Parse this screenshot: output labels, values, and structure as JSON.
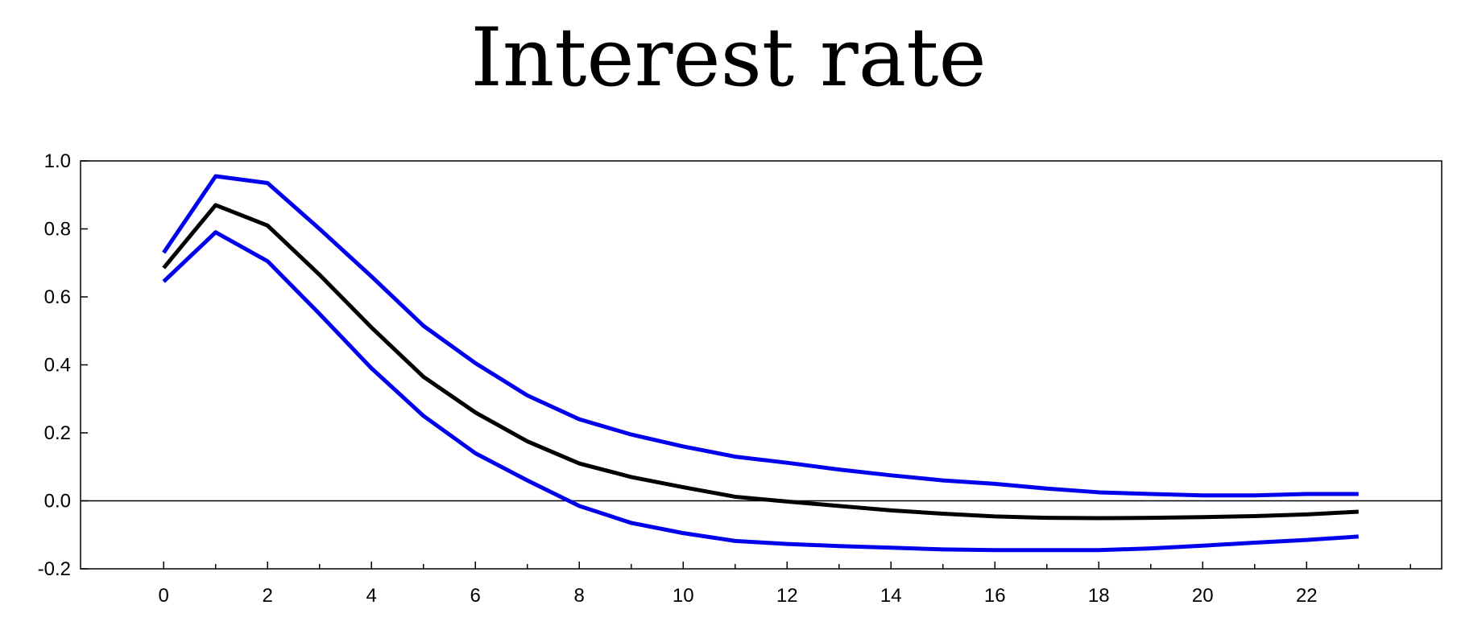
{
  "chart_data": {
    "type": "line",
    "title": "Interest rate",
    "xlabel": "",
    "ylabel": "",
    "xlim": [
      -1.6,
      24.6
    ],
    "ylim": [
      -0.2,
      1.0
    ],
    "x_ticks": [
      0,
      2,
      4,
      6,
      8,
      10,
      12,
      14,
      16,
      18,
      20,
      22
    ],
    "y_ticks": [
      "1.0",
      "0.8",
      "0.6",
      "0.4",
      "0.2",
      "0.0",
      "-0.2"
    ],
    "y_tick_values": [
      1.0,
      0.8,
      0.6,
      0.4,
      0.2,
      0.0,
      -0.2
    ],
    "zero_line": true,
    "grid": false,
    "legend": "none",
    "x": [
      0,
      1,
      2,
      3,
      4,
      5,
      6,
      7,
      8,
      9,
      10,
      11,
      12,
      13,
      14,
      15,
      16,
      17,
      18,
      19,
      20,
      21,
      22,
      23
    ],
    "series": [
      {
        "color": "#0000ee",
        "values": [
          0.73,
          0.955,
          0.935,
          0.8,
          0.66,
          0.515,
          0.405,
          0.31,
          0.24,
          0.195,
          0.16,
          0.13,
          0.112,
          0.092,
          0.075,
          0.06,
          0.05,
          0.036,
          0.025,
          0.02,
          0.016,
          0.016,
          0.02,
          0.02
        ]
      },
      {
        "color": "#000000",
        "values": [
          0.685,
          0.87,
          0.81,
          0.665,
          0.51,
          0.365,
          0.26,
          0.175,
          0.11,
          0.07,
          0.04,
          0.012,
          -0.002,
          -0.015,
          -0.028,
          -0.038,
          -0.046,
          -0.05,
          -0.051,
          -0.05,
          -0.048,
          -0.045,
          -0.04,
          -0.032
        ]
      },
      {
        "color": "#0000ee",
        "values": [
          0.645,
          0.79,
          0.705,
          0.55,
          0.39,
          0.25,
          0.14,
          0.06,
          -0.015,
          -0.065,
          -0.095,
          -0.118,
          -0.127,
          -0.133,
          -0.138,
          -0.143,
          -0.145,
          -0.145,
          -0.145,
          -0.14,
          -0.132,
          -0.123,
          -0.115,
          -0.105
        ]
      }
    ]
  }
}
